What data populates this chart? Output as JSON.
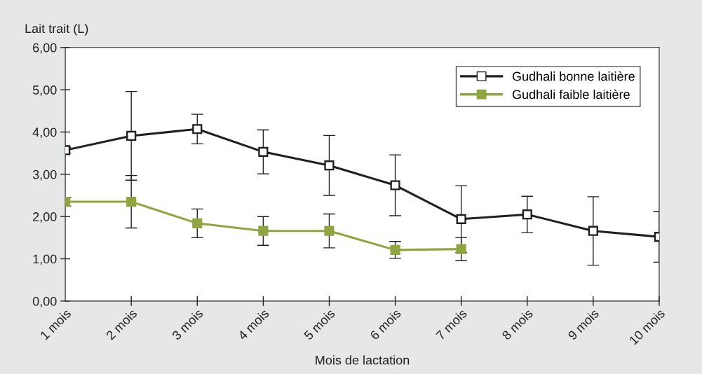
{
  "chart_data": {
    "type": "line",
    "ylabel": "Lait trait (L)",
    "xlabel": "Mois de lactation",
    "categories": [
      "1 mois",
      "2 mois",
      "3 mois",
      "4 mois",
      "5 mois",
      "6 mois",
      "7 mois",
      "8 mois",
      "9 mois",
      "10 mois"
    ],
    "series": [
      {
        "name": "Gudhali bonne laitière",
        "color": "#231f20",
        "marker": "square",
        "values": [
          3.57,
          3.91,
          4.07,
          3.53,
          3.21,
          2.74,
          1.94,
          2.05,
          1.66,
          1.52
        ],
        "errors": [
          0.07,
          1.05,
          0.35,
          0.52,
          0.71,
          0.72,
          0.79,
          0.43,
          0.81,
          0.6
        ]
      },
      {
        "name": "Gudhali faible laitière",
        "color": "#8fa640",
        "marker": "square",
        "values": [
          2.35,
          2.35,
          1.84,
          1.66,
          1.66,
          1.21,
          1.23,
          null,
          null,
          null
        ],
        "errors": [
          0.1,
          0.62,
          0.34,
          0.34,
          0.4,
          0.2,
          0.27,
          null,
          null,
          null
        ]
      }
    ],
    "ylim": [
      0,
      6
    ],
    "yticks": [
      {
        "value": 0,
        "label": "0,00"
      },
      {
        "value": 1,
        "label": "1,00"
      },
      {
        "value": 2,
        "label": "2,00"
      },
      {
        "value": 3,
        "label": "3,00"
      },
      {
        "value": 4,
        "label": "4,00"
      },
      {
        "value": 5,
        "label": "5,00"
      },
      {
        "value": 6,
        "label": "6,00"
      }
    ],
    "grid": false,
    "legend": "top right",
    "line_style": "solid"
  }
}
